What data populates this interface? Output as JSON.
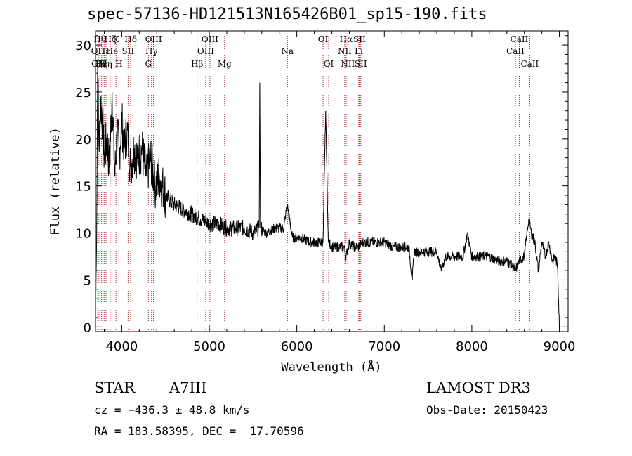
{
  "chart_data": {
    "type": "line",
    "title": "spec-57136-HD121513N165426B01_sp15-190.fits",
    "xlabel": "Wavelength (Å)",
    "ylabel": "Flux (relative)",
    "xlim": [
      3700,
      9100
    ],
    "ylim": [
      -0.5,
      31.5
    ],
    "x_ticks": [
      4000,
      5000,
      6000,
      7000,
      8000,
      9000
    ],
    "y_ticks": [
      0,
      5,
      10,
      15,
      20,
      25,
      30
    ],
    "grid": false,
    "line_color": "#000000",
    "marker_color": "#b22222",
    "series": [
      {
        "x": [
          3700,
          3710,
          3725,
          3740,
          3760,
          3780,
          3800,
          3830,
          3860,
          3890,
          3920,
          3950,
          3970,
          4000,
          4030,
          4060,
          4100,
          4140,
          4180,
          4230,
          4280,
          4330,
          4380,
          4430,
          4500,
          4600,
          4700,
          4800,
          4900,
          5000,
          5100,
          5200,
          5300,
          5400,
          5500,
          5570,
          5577,
          5585,
          5650,
          5750,
          5850,
          5890,
          5950,
          6050,
          6150,
          6250,
          6300,
          6330,
          6360,
          6400,
          6480,
          6540,
          6563,
          6600,
          6650,
          6700,
          6750,
          6800,
          6900,
          7000,
          7100,
          7200,
          7280,
          7320,
          7340,
          7400,
          7500,
          7600,
          7650,
          7700,
          7800,
          7900,
          7950,
          8000,
          8100,
          8200,
          8300,
          8400,
          8460,
          8500,
          8540,
          8600,
          8650,
          8680,
          8720,
          8760,
          8800,
          8840,
          8880,
          8920,
          8950,
          8980,
          9000
        ],
        "y": [
          0.5,
          7,
          28,
          19,
          24,
          22,
          18,
          20,
          17,
          25,
          16,
          21,
          18,
          22,
          19,
          21,
          17,
          19,
          18,
          19,
          16,
          18,
          15,
          16,
          14,
          13,
          12.5,
          12,
          11.5,
          11,
          11,
          10.5,
          10.5,
          10.5,
          10,
          10.5,
          26,
          10.5,
          10,
          10.5,
          10.5,
          13,
          9.5,
          9.5,
          9,
          9,
          9,
          23,
          9,
          8.5,
          8.5,
          8.5,
          7.5,
          9,
          8.5,
          8.5,
          9,
          9,
          9,
          9,
          8.5,
          8.5,
          8.5,
          5,
          8,
          8,
          8,
          8,
          6,
          7.5,
          7.5,
          7.5,
          10,
          7.5,
          7.5,
          7.5,
          7,
          7,
          6.5,
          6,
          7,
          7.5,
          11.5,
          10,
          9,
          6,
          9,
          7.5,
          9,
          7,
          7.5,
          6.5,
          0
        ]
      }
    ],
    "line_markers": [
      {
        "x": 3726,
        "label": "OII",
        "row": 1
      },
      {
        "x": 3732,
        "label": "CN",
        "row": 2
      },
      {
        "x": 3750,
        "label": "Hθ",
        "row": 0
      },
      {
        "x": 3770,
        "label": "Hη",
        "row": 2
      },
      {
        "x": 3798,
        "label": "Hε",
        "row": 1
      },
      {
        "x": 3820,
        "label": "Hη",
        "row": 2
      },
      {
        "x": 3868,
        "label": "Hζ",
        "row": 0
      },
      {
        "x": 3889,
        "label": "He",
        "row": 1
      },
      {
        "x": 3934,
        "label": "K",
        "row": 0
      },
      {
        "x": 3968,
        "label": "H",
        "row": 2
      },
      {
        "x": 4072,
        "label": "SII",
        "row": 1
      },
      {
        "x": 4102,
        "label": "Hδ",
        "row": 0
      },
      {
        "x": 4304,
        "label": "G",
        "row": 2
      },
      {
        "x": 4340,
        "label": "Hγ",
        "row": 1
      },
      {
        "x": 4363,
        "label": "OIII",
        "row": 0
      },
      {
        "x": 4861,
        "label": "Hβ",
        "row": 2
      },
      {
        "x": 4959,
        "label": "OIII",
        "row": 1
      },
      {
        "x": 5007,
        "label": "OIII",
        "row": 0
      },
      {
        "x": 5175,
        "label": "Mg",
        "row": 2
      },
      {
        "x": 5893,
        "label": "Na",
        "row": 1
      },
      {
        "x": 6300,
        "label": "OI",
        "row": 0
      },
      {
        "x": 6364,
        "label": "OI",
        "row": 2
      },
      {
        "x": 6548,
        "label": "NII",
        "row": 1
      },
      {
        "x": 6563,
        "label": "Hα",
        "row": 0
      },
      {
        "x": 6583,
        "label": "NII",
        "row": 2
      },
      {
        "x": 6708,
        "label": "Li",
        "row": 1
      },
      {
        "x": 6716,
        "label": "SII",
        "row": 0
      },
      {
        "x": 6731,
        "label": "SII",
        "row": 2
      },
      {
        "x": 8498,
        "label": "CaII",
        "row": 1
      },
      {
        "x": 8542,
        "label": "CaII",
        "row": 0
      },
      {
        "x": 8662,
        "label": "CaII",
        "row": 2
      }
    ]
  },
  "info": {
    "object_type": "STAR",
    "subclass": "A7III",
    "survey": "LAMOST DR3",
    "cz": "cz = −436.3 ± 48.8 km/s",
    "obs_date": "Obs-Date: 20150423",
    "coords": "RA = 183.58395, DEC =  17.70596"
  }
}
